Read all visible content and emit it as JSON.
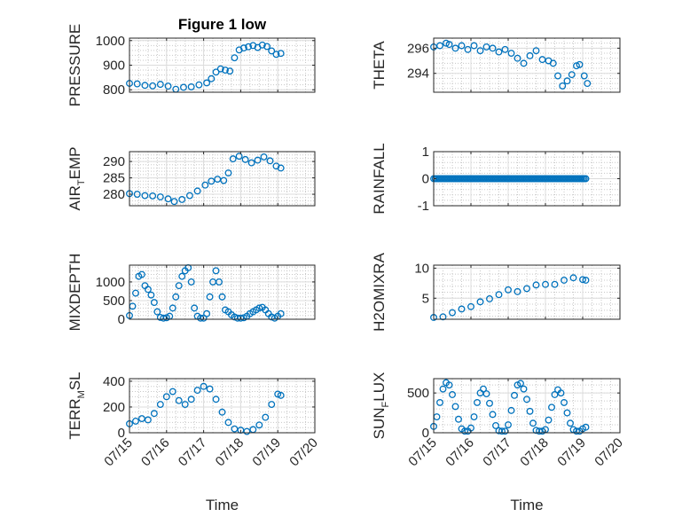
{
  "figure": {
    "background": "#ffffff",
    "marker_color": "#0072bd",
    "x_axis_type": "date"
  },
  "chart_data": [
    {
      "id": "p-pressure",
      "type": "scatter",
      "title": "Figure 1 low",
      "ylabel": "PRESSURE",
      "ylabel_sub": "",
      "xlabel": "",
      "xlim": [
        "2020-07-15",
        "2020-07-20"
      ],
      "ylim": [
        790,
        1010
      ],
      "yticks": [
        800,
        900,
        1000
      ],
      "ytick_labels": [
        "800",
        "900",
        "1000"
      ],
      "xtick_labels": [],
      "grid": true,
      "minor_grid": true,
      "x": [
        "2020-07-15T00:00",
        "2020-07-15T05:00",
        "2020-07-15T10:00",
        "2020-07-15T15:00",
        "2020-07-15T20:00",
        "2020-07-16T01:00",
        "2020-07-16T06:00",
        "2020-07-16T11:00",
        "2020-07-16T16:00",
        "2020-07-16T21:00",
        "2020-07-17T02:00",
        "2020-07-17T05:00",
        "2020-07-17T08:00",
        "2020-07-17T11:00",
        "2020-07-17T14:00",
        "2020-07-17T17:00",
        "2020-07-17T20:00",
        "2020-07-17T23:00",
        "2020-07-18T02:00",
        "2020-07-18T05:00",
        "2020-07-18T08:00",
        "2020-07-18T11:00",
        "2020-07-18T14:00",
        "2020-07-18T17:00",
        "2020-07-18T20:00",
        "2020-07-18T23:00",
        "2020-07-19T02:00"
      ],
      "y": [
        826,
        824,
        818,
        816,
        822,
        815,
        802,
        810,
        812,
        820,
        828,
        845,
        872,
        885,
        880,
        876,
        930,
        962,
        970,
        975,
        980,
        972,
        982,
        976,
        958,
        944,
        948
      ]
    },
    {
      "id": "p-theta",
      "type": "scatter",
      "title": "",
      "ylabel": "THETA",
      "ylabel_sub": "",
      "xlabel": "",
      "xlim": [
        "2020-07-15",
        "2020-07-20"
      ],
      "ylim": [
        292.5,
        296.8
      ],
      "yticks": [
        294,
        296
      ],
      "ytick_labels": [
        "294",
        "296"
      ],
      "xtick_labels": [],
      "grid": true,
      "minor_grid": true,
      "x": [
        "2020-07-15T00:00",
        "2020-07-15T04:00",
        "2020-07-15T08:00",
        "2020-07-15T10:00",
        "2020-07-15T14:00",
        "2020-07-15T18:00",
        "2020-07-15T22:00",
        "2020-07-16T02:00",
        "2020-07-16T06:00",
        "2020-07-16T10:00",
        "2020-07-16T14:00",
        "2020-07-16T18:00",
        "2020-07-16T22:00",
        "2020-07-17T02:00",
        "2020-07-17T06:00",
        "2020-07-17T10:00",
        "2020-07-17T14:00",
        "2020-07-17T18:00",
        "2020-07-17T22:00",
        "2020-07-18T02:00",
        "2020-07-18T05:00",
        "2020-07-18T08:00",
        "2020-07-18T11:00",
        "2020-07-18T14:00",
        "2020-07-18T17:00",
        "2020-07-18T20:00",
        "2020-07-18T22:00",
        "2020-07-19T01:00",
        "2020-07-19T03:00"
      ],
      "y": [
        296.1,
        296.2,
        296.4,
        296.3,
        296.0,
        296.2,
        295.9,
        296.2,
        295.8,
        296.1,
        296.0,
        295.7,
        295.9,
        295.6,
        295.2,
        294.8,
        295.4,
        295.8,
        295.1,
        295.0,
        294.8,
        293.8,
        293.0,
        293.4,
        293.9,
        294.6,
        294.7,
        293.8,
        293.2
      ]
    },
    {
      "id": "p-airtemp",
      "type": "scatter",
      "title": "",
      "ylabel": "AIR",
      "ylabel_sub": "T",
      "ylabel_suffix": "EMP",
      "xlabel": "",
      "xlim": [
        "2020-07-15",
        "2020-07-20"
      ],
      "ylim": [
        276.5,
        293
      ],
      "yticks": [
        280,
        285,
        290
      ],
      "ytick_labels": [
        "280",
        "285",
        "290"
      ],
      "xtick_labels": [],
      "grid": true,
      "minor_grid": true,
      "x": [
        "2020-07-15T00:00",
        "2020-07-15T05:00",
        "2020-07-15T10:00",
        "2020-07-15T15:00",
        "2020-07-15T20:00",
        "2020-07-16T01:00",
        "2020-07-16T05:00",
        "2020-07-16T10:00",
        "2020-07-16T15:00",
        "2020-07-16T20:00",
        "2020-07-17T01:00",
        "2020-07-17T05:00",
        "2020-07-17T09:00",
        "2020-07-17T13:00",
        "2020-07-17T16:00",
        "2020-07-17T19:00",
        "2020-07-17T23:00",
        "2020-07-18T03:00",
        "2020-07-18T07:00",
        "2020-07-18T11:00",
        "2020-07-18T15:00",
        "2020-07-18T19:00",
        "2020-07-18T23:00",
        "2020-07-19T02:00"
      ],
      "y": [
        280.2,
        280.0,
        279.6,
        279.5,
        279.2,
        278.6,
        277.8,
        278.4,
        279.6,
        281.0,
        282.8,
        284.0,
        284.6,
        284.2,
        286.5,
        290.8,
        291.6,
        290.6,
        289.6,
        290.4,
        291.4,
        290.2,
        288.6,
        288.0
      ]
    },
    {
      "id": "p-rainfall",
      "type": "scatter",
      "title": "",
      "ylabel": "RAINFALL",
      "ylabel_sub": "",
      "xlabel": "",
      "xlim": [
        "2020-07-15",
        "2020-07-20"
      ],
      "ylim": [
        -1,
        1
      ],
      "yticks": [
        -1,
        0,
        1
      ],
      "ytick_labels": [
        "-1",
        "0",
        "1"
      ],
      "xtick_labels": [],
      "grid": true,
      "minor_grid": true,
      "x_range": [
        "2020-07-15T00:00",
        "2020-07-19T02:00"
      ],
      "y_constant": 0
    },
    {
      "id": "p-mixdepth",
      "type": "scatter",
      "title": "",
      "ylabel": "MIXDEPTH",
      "ylabel_sub": "",
      "xlabel": "",
      "xlim": [
        "2020-07-15",
        "2020-07-20"
      ],
      "ylim": [
        0,
        1450
      ],
      "yticks": [
        0,
        500,
        1000
      ],
      "ytick_labels": [
        "0",
        "500",
        "1000"
      ],
      "xtick_labels": [],
      "grid": true,
      "minor_grid": true,
      "x": [
        "2020-07-15T00:00",
        "2020-07-15T02:00",
        "2020-07-15T04:00",
        "2020-07-15T06:00",
        "2020-07-15T08:00",
        "2020-07-15T10:00",
        "2020-07-15T12:00",
        "2020-07-15T14:00",
        "2020-07-15T16:00",
        "2020-07-15T18:00",
        "2020-07-15T20:00",
        "2020-07-15T22:00",
        "2020-07-16T00:00",
        "2020-07-16T02:00",
        "2020-07-16T04:00",
        "2020-07-16T06:00",
        "2020-07-16T08:00",
        "2020-07-16T10:00",
        "2020-07-16T12:00",
        "2020-07-16T14:00",
        "2020-07-16T16:00",
        "2020-07-16T18:00",
        "2020-07-16T20:00",
        "2020-07-16T22:00",
        "2020-07-17T00:00",
        "2020-07-17T02:00",
        "2020-07-17T04:00",
        "2020-07-17T06:00",
        "2020-07-17T08:00",
        "2020-07-17T10:00",
        "2020-07-17T12:00",
        "2020-07-17T14:00",
        "2020-07-17T16:00",
        "2020-07-17T18:00",
        "2020-07-17T20:00",
        "2020-07-17T22:00",
        "2020-07-18T00:00",
        "2020-07-18T02:00",
        "2020-07-18T04:00",
        "2020-07-18T06:00",
        "2020-07-18T08:00",
        "2020-07-18T10:00",
        "2020-07-18T12:00",
        "2020-07-18T14:00",
        "2020-07-18T16:00",
        "2020-07-18T18:00",
        "2020-07-18T20:00",
        "2020-07-18T22:00",
        "2020-07-19T00:00",
        "2020-07-19T02:00"
      ],
      "y": [
        100,
        350,
        700,
        1150,
        1200,
        900,
        800,
        650,
        450,
        200,
        50,
        30,
        40,
        80,
        300,
        600,
        900,
        1150,
        1300,
        1380,
        1000,
        300,
        80,
        30,
        30,
        150,
        600,
        1000,
        1300,
        1000,
        600,
        250,
        200,
        120,
        60,
        30,
        30,
        40,
        80,
        150,
        200,
        250,
        300,
        320,
        250,
        150,
        60,
        30,
        80,
        150
      ]
    },
    {
      "id": "p-h2omixra",
      "type": "scatter",
      "title": "",
      "ylabel": "H2OMIXRA",
      "ylabel_sub": "",
      "xlabel": "",
      "xlim": [
        "2020-07-15",
        "2020-07-20"
      ],
      "ylim": [
        1.5,
        10.5
      ],
      "yticks": [
        5,
        10
      ],
      "ytick_labels": [
        "5",
        "10"
      ],
      "xtick_labels": [],
      "grid": true,
      "minor_grid": true,
      "x": [
        "2020-07-15T00:00",
        "2020-07-15T06:00",
        "2020-07-15T12:00",
        "2020-07-15T18:00",
        "2020-07-16T00:00",
        "2020-07-16T06:00",
        "2020-07-16T12:00",
        "2020-07-16T18:00",
        "2020-07-17T00:00",
        "2020-07-17T06:00",
        "2020-07-17T12:00",
        "2020-07-17T18:00",
        "2020-07-18T00:00",
        "2020-07-18T06:00",
        "2020-07-18T12:00",
        "2020-07-18T18:00",
        "2020-07-19T00:00",
        "2020-07-19T02:00"
      ],
      "y": [
        1.8,
        1.9,
        2.6,
        3.2,
        3.6,
        4.4,
        4.9,
        5.6,
        6.4,
        6.1,
        6.6,
        7.2,
        7.3,
        7.3,
        8.0,
        8.4,
        8.1,
        8.0
      ]
    },
    {
      "id": "p-terrmsl",
      "type": "scatter",
      "title": "",
      "ylabel": "TERR",
      "ylabel_sub": "M",
      "ylabel_suffix": "SL",
      "xlabel": "Time",
      "xlim": [
        "2020-07-15",
        "2020-07-20"
      ],
      "ylim": [
        0,
        420
      ],
      "yticks": [
        0,
        200,
        400
      ],
      "ytick_labels": [
        "0",
        "200",
        "400"
      ],
      "xtick_labels": [
        "07/15",
        "07/16",
        "07/17",
        "07/18",
        "07/19",
        "07/20"
      ],
      "grid": true,
      "minor_grid": true,
      "x": [
        "2020-07-15T00:00",
        "2020-07-15T04:00",
        "2020-07-15T08:00",
        "2020-07-15T12:00",
        "2020-07-15T16:00",
        "2020-07-15T20:00",
        "2020-07-16T00:00",
        "2020-07-16T04:00",
        "2020-07-16T08:00",
        "2020-07-16T12:00",
        "2020-07-16T16:00",
        "2020-07-16T20:00",
        "2020-07-17T00:00",
        "2020-07-17T04:00",
        "2020-07-17T08:00",
        "2020-07-17T12:00",
        "2020-07-17T16:00",
        "2020-07-17T20:00",
        "2020-07-18T00:00",
        "2020-07-18T04:00",
        "2020-07-18T08:00",
        "2020-07-18T12:00",
        "2020-07-18T16:00",
        "2020-07-18T20:00",
        "2020-07-19T00:00",
        "2020-07-19T02:00"
      ],
      "y": [
        70,
        90,
        110,
        100,
        150,
        220,
        280,
        320,
        250,
        220,
        260,
        330,
        360,
        340,
        260,
        160,
        80,
        30,
        20,
        10,
        25,
        60,
        120,
        220,
        300,
        290
      ]
    },
    {
      "id": "p-sunflux",
      "type": "scatter",
      "title": "",
      "ylabel": "SUN",
      "ylabel_sub": "F",
      "ylabel_suffix": "LUX",
      "xlabel": "Time",
      "xlim": [
        "2020-07-15",
        "2020-07-20"
      ],
      "ylim": [
        0,
        680
      ],
      "yticks": [
        0,
        500
      ],
      "ytick_labels": [
        "0",
        "500"
      ],
      "xtick_labels": [
        "07/15",
        "07/16",
        "07/17",
        "07/18",
        "07/19",
        "07/20"
      ],
      "grid": true,
      "minor_grid": true,
      "x": [
        "2020-07-15T00:00",
        "2020-07-15T02:00",
        "2020-07-15T04:00",
        "2020-07-15T06:00",
        "2020-07-15T08:00",
        "2020-07-15T10:00",
        "2020-07-15T12:00",
        "2020-07-15T14:00",
        "2020-07-15T16:00",
        "2020-07-15T18:00",
        "2020-07-15T20:00",
        "2020-07-15T22:00",
        "2020-07-16T00:00",
        "2020-07-16T02:00",
        "2020-07-16T04:00",
        "2020-07-16T06:00",
        "2020-07-16T08:00",
        "2020-07-16T10:00",
        "2020-07-16T12:00",
        "2020-07-16T14:00",
        "2020-07-16T16:00",
        "2020-07-16T18:00",
        "2020-07-16T20:00",
        "2020-07-16T22:00",
        "2020-07-17T00:00",
        "2020-07-17T02:00",
        "2020-07-17T04:00",
        "2020-07-17T06:00",
        "2020-07-17T08:00",
        "2020-07-17T10:00",
        "2020-07-17T12:00",
        "2020-07-17T14:00",
        "2020-07-17T16:00",
        "2020-07-17T18:00",
        "2020-07-17T20:00",
        "2020-07-17T22:00",
        "2020-07-18T00:00",
        "2020-07-18T02:00",
        "2020-07-18T04:00",
        "2020-07-18T06:00",
        "2020-07-18T08:00",
        "2020-07-18T10:00",
        "2020-07-18T12:00",
        "2020-07-18T14:00",
        "2020-07-18T16:00",
        "2020-07-18T18:00",
        "2020-07-18T20:00",
        "2020-07-18T22:00",
        "2020-07-19T00:00",
        "2020-07-19T02:00"
      ],
      "y": [
        80,
        200,
        380,
        550,
        630,
        600,
        480,
        330,
        170,
        50,
        20,
        20,
        60,
        200,
        380,
        500,
        550,
        490,
        370,
        230,
        90,
        25,
        20,
        20,
        100,
        280,
        470,
        600,
        620,
        550,
        420,
        270,
        120,
        30,
        20,
        20,
        40,
        160,
        320,
        480,
        540,
        500,
        380,
        250,
        120,
        40,
        20,
        20,
        50,
        70
      ]
    }
  ]
}
